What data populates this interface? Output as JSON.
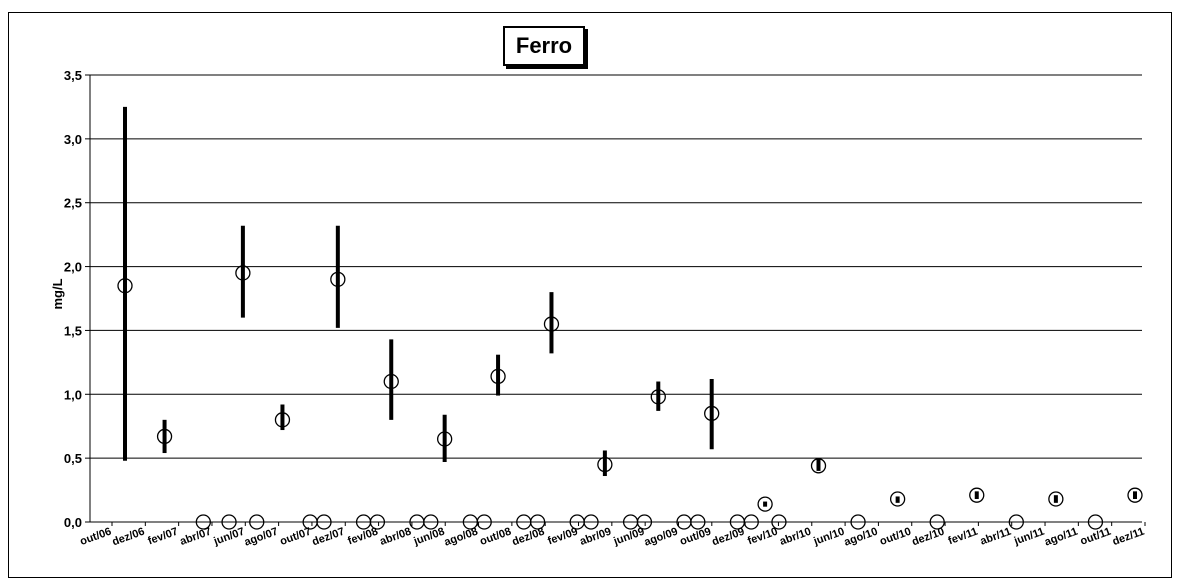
{
  "chart_data": {
    "type": "scatter",
    "title": "Ferro",
    "xlabel": "",
    "ylabel": "mg/L",
    "ylim": [
      0,
      3.5
    ],
    "yticks": [
      "0,0",
      "0,5",
      "1,0",
      "1,5",
      "2,0",
      "2,5",
      "3,0",
      "3,5"
    ],
    "xticks": [
      "out/06",
      "dez/06",
      "fev/07",
      "abr/07",
      "jun/07",
      "ago/07",
      "out/07",
      "dez/07",
      "fev/08",
      "abr/08",
      "jun/08",
      "ago/08",
      "out/08",
      "dez/08",
      "fev/09",
      "abr/09",
      "jun/09",
      "ago/09",
      "out/09",
      "dez/09",
      "fev/10",
      "abr/10",
      "jun/10",
      "ago/10",
      "out/10",
      "dez/10",
      "fev/11",
      "abr/11",
      "jun/11",
      "ago/11",
      "out/11",
      "dez/11"
    ],
    "grid": true,
    "points": [
      {
        "x": 0.0,
        "mean": 1.85,
        "min": 0.48,
        "max": 3.25
      },
      {
        "x": 1.0,
        "mean": 0.67,
        "min": 0.54,
        "max": 0.8
      },
      {
        "x": 1.98,
        "mean": 0.0
      },
      {
        "x": 2.63,
        "mean": 0.0
      },
      {
        "x": 2.98,
        "mean": 1.95,
        "min": 1.6,
        "max": 2.32
      },
      {
        "x": 3.33,
        "mean": 0.0
      },
      {
        "x": 3.98,
        "mean": 0.8,
        "min": 0.72,
        "max": 0.92
      },
      {
        "x": 4.68,
        "mean": 0.0
      },
      {
        "x": 5.03,
        "mean": 0.0
      },
      {
        "x": 5.38,
        "mean": 1.9,
        "min": 1.52,
        "max": 2.32
      },
      {
        "x": 6.03,
        "mean": 0.0
      },
      {
        "x": 6.38,
        "mean": 0.0
      },
      {
        "x": 6.73,
        "mean": 1.1,
        "min": 0.8,
        "max": 1.43
      },
      {
        "x": 7.38,
        "mean": 0.0
      },
      {
        "x": 7.73,
        "mean": 0.0
      },
      {
        "x": 8.08,
        "mean": 0.65,
        "min": 0.47,
        "max": 0.84
      },
      {
        "x": 8.73,
        "mean": 0.0
      },
      {
        "x": 9.08,
        "mean": 0.0
      },
      {
        "x": 9.43,
        "mean": 1.14,
        "min": 0.99,
        "max": 1.31
      },
      {
        "x": 10.08,
        "mean": 0.0
      },
      {
        "x": 10.43,
        "mean": 0.0
      },
      {
        "x": 10.78,
        "mean": 1.55,
        "min": 1.32,
        "max": 1.8
      },
      {
        "x": 11.43,
        "mean": 0.0
      },
      {
        "x": 11.78,
        "mean": 0.0
      },
      {
        "x": 12.13,
        "mean": 0.45,
        "min": 0.36,
        "max": 0.56
      },
      {
        "x": 12.78,
        "mean": 0.0
      },
      {
        "x": 13.13,
        "mean": 0.0
      },
      {
        "x": 13.48,
        "mean": 0.98,
        "min": 0.87,
        "max": 1.1
      },
      {
        "x": 14.13,
        "mean": 0.0
      },
      {
        "x": 14.48,
        "mean": 0.0
      },
      {
        "x": 14.83,
        "mean": 0.85,
        "min": 0.57,
        "max": 1.12
      },
      {
        "x": 15.48,
        "mean": 0.0
      },
      {
        "x": 15.83,
        "mean": 0.0
      },
      {
        "x": 16.18,
        "mean": 0.14,
        "min": 0.12,
        "max": 0.16
      },
      {
        "x": 16.53,
        "mean": 0.0
      },
      {
        "x": 17.53,
        "mean": 0.44,
        "min": 0.4,
        "max": 0.5
      },
      {
        "x": 18.53,
        "mean": 0.0
      },
      {
        "x": 19.53,
        "mean": 0.18,
        "min": 0.15,
        "max": 0.2
      },
      {
        "x": 20.53,
        "mean": 0.0
      },
      {
        "x": 21.53,
        "mean": 0.21,
        "min": 0.18,
        "max": 0.24
      },
      {
        "x": 22.53,
        "mean": 0.0
      },
      {
        "x": 23.53,
        "mean": 0.18,
        "min": 0.15,
        "max": 0.21
      },
      {
        "x": 24.53,
        "mean": 0.0
      },
      {
        "x": 25.53,
        "mean": 0.21,
        "min": 0.18,
        "max": 0.24
      }
    ],
    "x_range": [
      0,
      25.53
    ]
  }
}
